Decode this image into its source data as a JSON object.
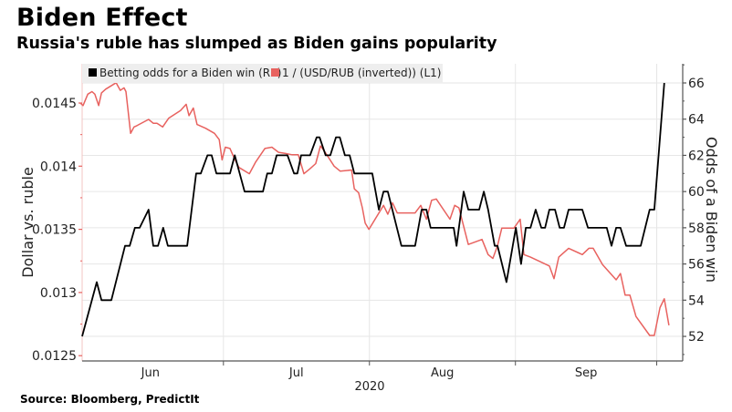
{
  "header": {
    "title": "Biden Effect",
    "subtitle": "Russia's ruble has slumped as Biden gains popularity"
  },
  "footer": {
    "source": "Source: Bloomberg, PredictIt"
  },
  "chart_data": {
    "type": "line",
    "title": "Biden Effect",
    "subtitle": "Russia's ruble has slumped as Biden gains popularity",
    "xlabel": "2020",
    "x_unit": "days since 2020-06-01",
    "x_ticks": [
      {
        "label": "Jun",
        "day": 14.5
      },
      {
        "label": "Jul",
        "day": 45.5
      },
      {
        "label": "Aug",
        "day": 76.5
      },
      {
        "label": "Sep",
        "day": 107
      }
    ],
    "x_month_boundaries": [
      30,
      61,
      92,
      122
    ],
    "x_year_label": "2020",
    "xlim": [
      0,
      127
    ],
    "left_axis": {
      "label": "Dollar vs. ruble",
      "ylim": [
        0.01248,
        0.01474
      ],
      "ticks": [
        0.0125,
        0.013,
        0.0135,
        0.014,
        0.0145
      ],
      "tick_labels": [
        "0.0125",
        "0.013",
        "0.0135",
        "0.014",
        "0.0145"
      ],
      "color": "#e8625f"
    },
    "right_axis": {
      "label": "Odds of a Biden win",
      "ylim": [
        50.9,
        67.1
      ],
      "ticks": [
        52,
        54,
        56,
        58,
        60,
        62,
        64,
        66
      ],
      "tick_labels": [
        "52",
        "54",
        "56",
        "58",
        "60",
        "62",
        "64",
        "66"
      ],
      "color": "#222222"
    },
    "grid": true,
    "legend_position": "top-left",
    "series": [
      {
        "name": "Betting odds for a Biden win (R1)",
        "axis": "right",
        "color": "#000000",
        "x": [
          0,
          3.1,
          4.1,
          6.2,
          9.1,
          10.1,
          11.2,
          12.2,
          14.1,
          15.1,
          16.1,
          17.2,
          18.2,
          22.3,
          24.2,
          25.2,
          26.6,
          27.5,
          28.5,
          31.4,
          32.4,
          34.5,
          38.4,
          39.3,
          40.3,
          41.3,
          43.6,
          45,
          45.7,
          46.5,
          48.4,
          49.8,
          50.4,
          51.7,
          52.7,
          53.9,
          54.7,
          55.8,
          56.8,
          57.8,
          61.6,
          63,
          64,
          64.9,
          67.8,
          70.7,
          72.1,
          73.1,
          74,
          78.9,
          79.5,
          81,
          82,
          84.3,
          85.3,
          86.2,
          87.6,
          88.2,
          90.1,
          92.1,
          93.2,
          94.2,
          95.2,
          96.3,
          97.5,
          98.3,
          99.2,
          100.4,
          101.4,
          102.3,
          103.3,
          106.2,
          107.4,
          111.4,
          112.4,
          113.4,
          114.3,
          115.5,
          118.6,
          120.5,
          121.5,
          123.6
        ],
        "values": [
          52,
          55,
          54,
          54,
          57,
          57,
          58,
          58,
          59,
          57,
          57,
          58,
          57,
          57,
          61,
          61,
          62,
          62,
          61,
          61,
          62,
          60,
          60,
          61,
          61,
          62,
          62,
          61,
          61,
          62,
          62,
          63,
          63,
          62,
          62,
          63,
          63,
          62,
          62,
          61,
          61,
          59,
          60,
          60,
          57,
          57,
          59,
          59,
          58,
          58,
          57,
          60,
          59,
          59,
          60,
          59,
          57,
          57,
          55,
          58,
          56,
          58,
          58,
          59,
          58,
          58,
          59,
          59,
          58,
          58,
          59,
          59,
          58,
          58,
          57,
          58,
          58,
          57,
          57,
          59,
          59,
          66
        ]
      },
      {
        "name": "1 / (USD/RUB (inverted)) (L1)",
        "axis": "left",
        "color": "#e8625f",
        "x": [
          -0.4,
          0.2,
          1.2,
          2.1,
          2.7,
          3.5,
          4.1,
          5,
          7.2,
          8.1,
          8.9,
          9.3,
          10.3,
          11,
          11.6,
          14.1,
          15.1,
          15.9,
          17.1,
          18.4,
          20.9,
          22.1,
          22.7,
          23.6,
          24.4,
          26.2,
          28.1,
          29.1,
          29.7,
          30.4,
          31.4,
          32.2,
          33.3,
          35.5,
          36.8,
          38.8,
          40.3,
          41.7,
          43.2,
          44.6,
          45.9,
          47.1,
          48.4,
          49.6,
          50.6,
          51.6,
          53.5,
          54.8,
          57.2,
          57.8,
          58.7,
          59.5,
          60.1,
          60.9,
          64,
          64.9,
          65.9,
          66.9,
          70.7,
          71.9,
          73.1,
          74.2,
          75.2,
          78.1,
          79.1,
          80,
          82,
          84.9,
          86.2,
          87.2,
          88.2,
          89.1,
          91.7,
          93,
          93.8,
          95.2,
          99.2,
          100.2,
          101.2,
          103.3,
          106.2,
          107.6,
          108.5,
          110.5,
          113.4,
          114.3,
          115.3,
          116.3,
          117.6,
          120.5,
          121.5,
          122.7,
          123.6,
          124.6
        ],
        "values": [
          0.0145,
          0.01448,
          0.01457,
          0.01459,
          0.01457,
          0.01448,
          0.01458,
          0.01461,
          0.01466,
          0.0146,
          0.01462,
          0.01459,
          0.01426,
          0.01431,
          0.01432,
          0.01437,
          0.01434,
          0.01434,
          0.01431,
          0.01438,
          0.01444,
          0.01449,
          0.0144,
          0.01446,
          0.01433,
          0.0143,
          0.01426,
          0.01421,
          0.01405,
          0.01415,
          0.01414,
          0.01407,
          0.01399,
          0.01394,
          0.01403,
          0.01414,
          0.01415,
          0.01411,
          0.0141,
          0.01409,
          0.01409,
          0.01394,
          0.01398,
          0.01402,
          0.01416,
          0.01411,
          0.014,
          0.01396,
          0.01397,
          0.01382,
          0.01379,
          0.01367,
          0.01355,
          0.0135,
          0.01369,
          0.01362,
          0.01371,
          0.01363,
          0.01363,
          0.01369,
          0.01358,
          0.01373,
          0.01374,
          0.01358,
          0.01369,
          0.01367,
          0.01338,
          0.01342,
          0.0133,
          0.01327,
          0.01337,
          0.01351,
          0.01351,
          0.01358,
          0.0133,
          0.01328,
          0.01321,
          0.01311,
          0.01328,
          0.01335,
          0.0133,
          0.01335,
          0.01335,
          0.01322,
          0.0131,
          0.01315,
          0.01298,
          0.01298,
          0.01281,
          0.01266,
          0.01266,
          0.01288,
          0.01295,
          0.01274
        ]
      }
    ],
    "legend": [
      {
        "label": "Betting odds for a Biden win (R1)",
        "color": "#000000"
      },
      {
        "label": "1 / (USD/RUB (inverted)) (L1)",
        "color": "#e8625f"
      }
    ]
  }
}
